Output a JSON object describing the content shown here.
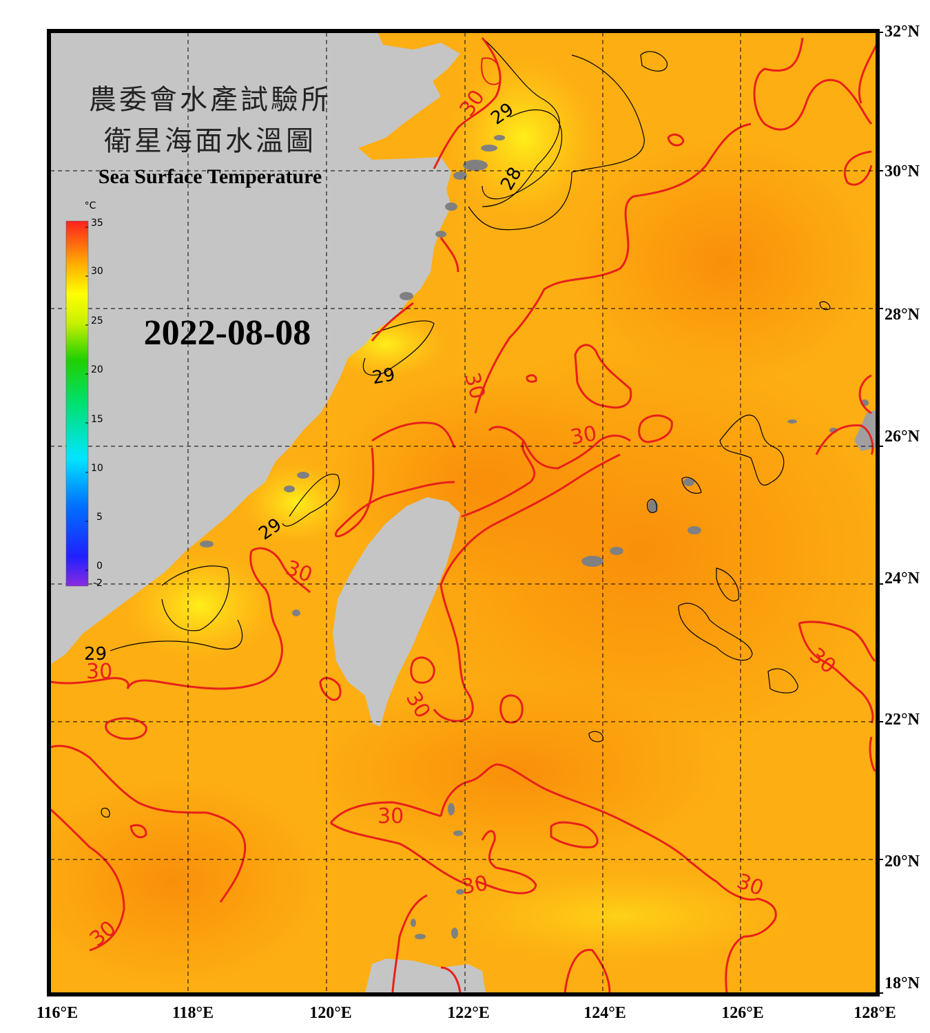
{
  "title_cn_line1": "農委會水產試驗所",
  "title_cn_line2": "衛星海面水溫圖",
  "title_en": "Sea Surface Temperature",
  "date": "2022-08-08",
  "colorbar": {
    "unit": "°C",
    "ticks": [
      "35",
      "30",
      "25",
      "20",
      "15",
      "10",
      "5",
      "0",
      "-2"
    ]
  },
  "lon_labels": [
    "116°E",
    "118°E",
    "120°E",
    "122°E",
    "124°E",
    "126°E",
    "128°E"
  ],
  "lat_labels": [
    "32°N",
    "30°N",
    "28°N",
    "26°N",
    "24°N",
    "22°N",
    "20°N",
    "18°N"
  ],
  "contour_labels_red": [
    "30",
    "30",
    "30",
    "30",
    "30",
    "30",
    "30",
    "30",
    "30",
    "30"
  ],
  "contour_labels_black": [
    "29",
    "28",
    "29",
    "29",
    "29"
  ],
  "colors": {
    "ocean": "#fdae12",
    "ocean_warm": "#f9950c",
    "ocean_cool": "#ffe21c",
    "land": "#c5c5c5",
    "island": "#808080",
    "isotherm_30": "#e8201a",
    "isotherm_other": "#000000"
  }
}
